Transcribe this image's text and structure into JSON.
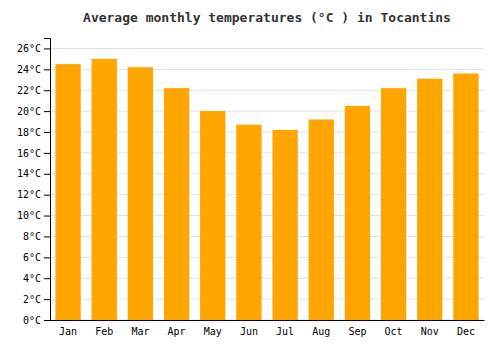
{
  "chart_data": {
    "type": "bar",
    "title": "Average monthly temperatures (°C ) in Tocantins",
    "categories": [
      "Jan",
      "Feb",
      "Mar",
      "Apr",
      "May",
      "Jun",
      "Jul",
      "Aug",
      "Sep",
      "Oct",
      "Nov",
      "Dec"
    ],
    "values": [
      24.5,
      25.0,
      24.2,
      22.2,
      20.0,
      18.7,
      18.2,
      19.2,
      20.5,
      22.2,
      23.1,
      23.6
    ],
    "color": "#FFA500",
    "ylim": [
      0,
      27
    ],
    "yticks": [
      {
        "value": 0,
        "label": "0°C"
      },
      {
        "value": 2,
        "label": "2°C"
      },
      {
        "value": 4,
        "label": "4°C"
      },
      {
        "value": 6,
        "label": "6°C"
      },
      {
        "value": 8,
        "label": "8°C"
      },
      {
        "value": 10,
        "label": "10°C"
      },
      {
        "value": 12,
        "label": "12°C"
      },
      {
        "value": 14,
        "label": "14°C"
      },
      {
        "value": 16,
        "label": "16°C"
      },
      {
        "value": 18,
        "label": "18°C"
      },
      {
        "value": 20,
        "label": "20°C"
      },
      {
        "value": 22,
        "label": "22°C"
      },
      {
        "value": 24,
        "label": "24°C"
      },
      {
        "value": 26,
        "label": "26°C"
      }
    ],
    "grid": true
  }
}
